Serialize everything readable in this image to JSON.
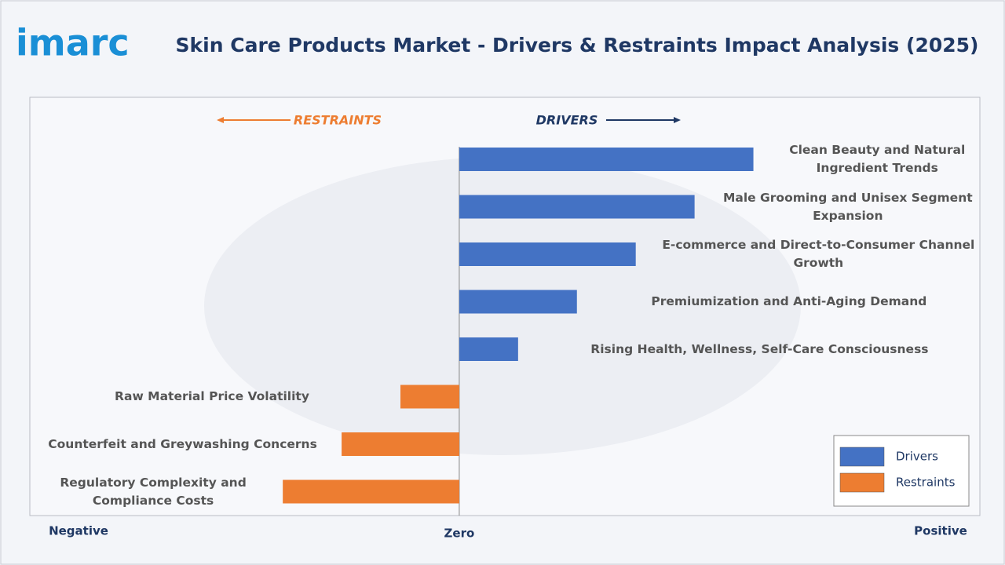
{
  "chart_data": {
    "type": "bar",
    "orientation": "horizontal",
    "logo": "imarc",
    "title": "Skin Care Products Market - Drivers & Restraints Impact Analysis (2025)",
    "left_header": "RESTRAINTS",
    "right_header": "DRIVERS",
    "categories": [
      "Clean Beauty and Natural Ingredient Trends",
      "Male Grooming and Unisex Segment Expansion",
      "E-commerce and Direct-to-Consumer Channel Growth",
      "Premiumization and Anti-Aging Demand",
      "Rising Health, Wellness, Self-Care Consciousness",
      "Raw Material Price Volatility",
      "Counterfeit and Greywashing Concerns",
      "Regulatory Complexity and Compliance Costs"
    ],
    "series": [
      {
        "name": "Drivers",
        "color": "#4472c4",
        "values": [
          5,
          4,
          3,
          2,
          1,
          null,
          null,
          null
        ]
      },
      {
        "name": "Restraints",
        "color": "#ed7d31",
        "values": [
          null,
          null,
          null,
          null,
          null,
          -1,
          -2,
          -3
        ]
      }
    ],
    "xlim": [
      -7.3,
      8.85
    ],
    "xticks": [
      {
        "value": 0,
        "label": "Zero"
      }
    ],
    "x_left_label": "Negative",
    "x_right_label": "Positive",
    "legend": "bottom-right"
  }
}
